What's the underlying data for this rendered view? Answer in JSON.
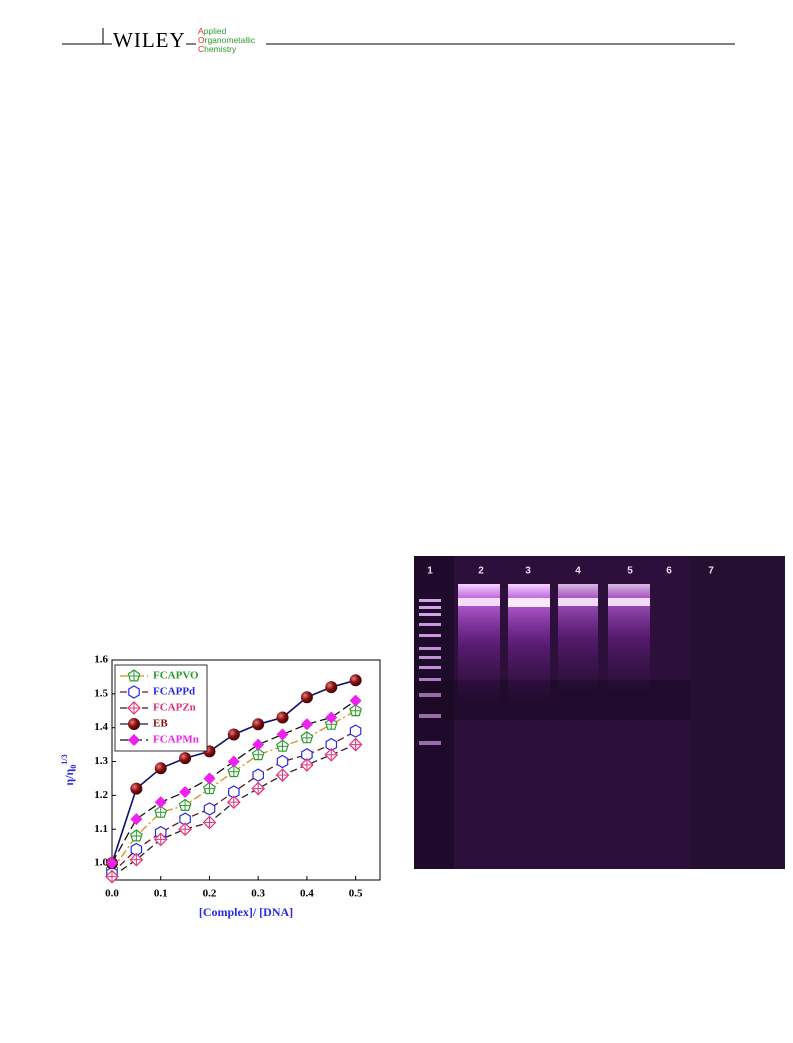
{
  "header": {
    "publisher": "WILEY",
    "journal": [
      "Applied",
      "Organometallic",
      "Chemistry"
    ]
  },
  "chart_data": {
    "type": "line",
    "xlabel": "[Complex]/ [DNA]",
    "ylabel": {
      "base": "η/η",
      "sub": "0",
      "sup": "1/3"
    },
    "x": [
      0,
      0.05,
      0.1,
      0.15,
      0.2,
      0.25,
      0.3,
      0.35,
      0.4,
      0.45,
      0.5
    ],
    "xlim": [
      0,
      0.55
    ],
    "xticks": [
      {
        "value": 0,
        "label": "0.0"
      },
      0.1,
      0.2,
      0.3,
      0.4,
      0.5
    ],
    "ylim": [
      0.95,
      1.6
    ],
    "yticks": [
      {
        "value": 1,
        "label": "1.0"
      },
      1.1,
      1.2,
      1.3,
      1.4,
      1.5,
      1.6
    ],
    "legend": "upper left",
    "series": [
      {
        "name": "FCAPVO",
        "color": "#2e9a2e",
        "line_color": "#e08a1a",
        "dash": "8 3 2 3",
        "marker": "pentagon",
        "values": [
          0.98,
          1.08,
          1.15,
          1.17,
          1.22,
          1.27,
          1.32,
          1.345,
          1.37,
          1.41,
          1.45
        ]
      },
      {
        "name": "FCAPPd",
        "color": "#2a2ae6",
        "line_color": "#6a1a1a",
        "dash": "7 4",
        "marker": "hexagon",
        "values": [
          0.97,
          1.04,
          1.09,
          1.13,
          1.16,
          1.21,
          1.26,
          1.3,
          1.32,
          1.35,
          1.39
        ]
      },
      {
        "name": "FCAPZn",
        "color": "#e0307a",
        "line_color": "#222222",
        "dash": "7 4",
        "marker": "diamond",
        "values": [
          0.96,
          1.01,
          1.07,
          1.1,
          1.12,
          1.18,
          1.22,
          1.26,
          1.29,
          1.32,
          1.35
        ]
      },
      {
        "name": "EB",
        "color": "#8a1010",
        "line_color": "#101070",
        "dash": "",
        "marker": "ball",
        "values": [
          1.0,
          1.22,
          1.28,
          1.31,
          1.33,
          1.38,
          1.41,
          1.43,
          1.49,
          1.52,
          1.54
        ]
      },
      {
        "name": "FCAPMn",
        "color": "#ee22ee",
        "line_color": "#111111",
        "dash": "9 4",
        "marker": "filled-diamond",
        "values": [
          1.0,
          1.13,
          1.18,
          1.21,
          1.25,
          1.3,
          1.35,
          1.38,
          1.41,
          1.43,
          1.48
        ]
      }
    ]
  },
  "gel": {
    "lanes": [
      "1",
      "2",
      "3",
      "4",
      "5",
      "6",
      "7"
    ]
  }
}
